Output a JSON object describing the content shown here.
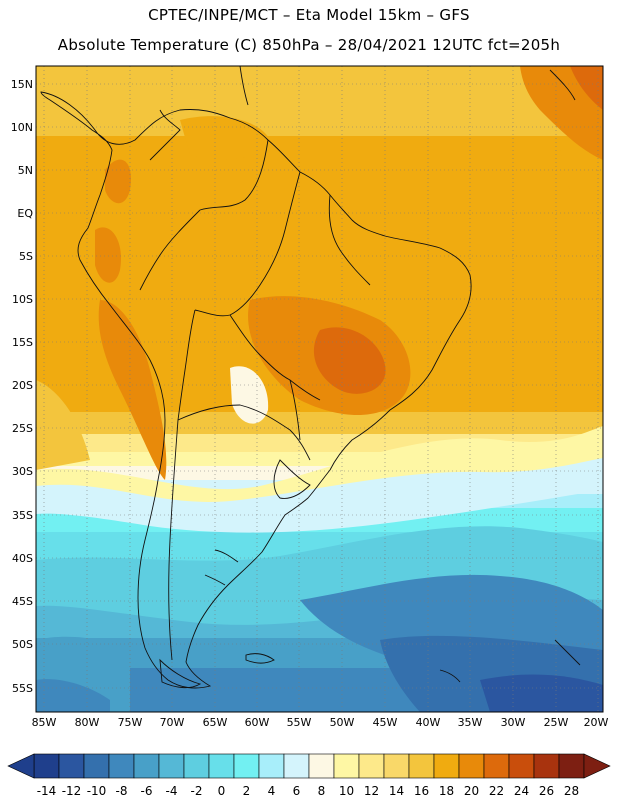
{
  "header": {
    "line1": "CPTEC/INPE/MCT –  Eta Model 15km – GFS",
    "line2": "Absolute Temperature (C) 850hPa – 28/04/2021 12UTC fct=205h"
  },
  "axes": {
    "lat_labels": [
      "15N",
      "10N",
      "5N",
      "EQ",
      "5S",
      "10S",
      "15S",
      "20S",
      "25S",
      "30S",
      "35S",
      "40S",
      "45S",
      "50S",
      "55S"
    ],
    "lon_labels": [
      "85W",
      "80W",
      "75W",
      "70W",
      "65W",
      "60W",
      "55W",
      "50W",
      "45W",
      "40W",
      "35W",
      "30W",
      "25W",
      "20W"
    ]
  },
  "colorbar": {
    "labels": [
      "-14",
      "-12",
      "-10",
      "-8",
      "-6",
      "-4",
      "-2",
      "0",
      "2",
      "4",
      "6",
      "8",
      "10",
      "12",
      "14",
      "16",
      "18",
      "20",
      "22",
      "24",
      "26",
      "28"
    ],
    "colors": [
      "#1f3f8c",
      "#2b56a0",
      "#3470ad",
      "#3f88bd",
      "#48a0c8",
      "#55b8d6",
      "#5ecee0",
      "#67dfea",
      "#72f0f2",
      "#a8eefa",
      "#d4f4fc",
      "#fdf8e4",
      "#fef7a4",
      "#fde98a",
      "#f9d869",
      "#f3c53d",
      "#f0ab10",
      "#e88a0a",
      "#dd6a0c",
      "#c94e0c",
      "#a8330e",
      "#7d1f12"
    ]
  }
}
